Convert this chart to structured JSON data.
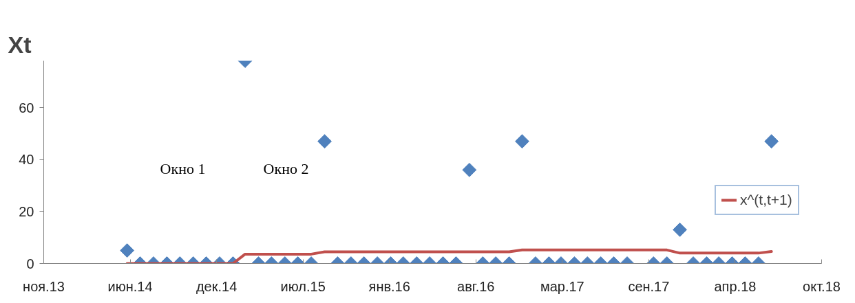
{
  "chart_data": {
    "type": "scatter",
    "title": "Xt",
    "x": [
      "2014-06",
      "2014-07",
      "2014-08",
      "2014-09",
      "2014-10",
      "2014-11",
      "2014-12",
      "2015-01",
      "2015-02",
      "2015-03",
      "2015-04",
      "2015-05",
      "2015-06",
      "2015-07",
      "2015-08",
      "2015-09",
      "2015-10",
      "2015-11",
      "2015-12",
      "2016-01",
      "2016-02",
      "2016-03",
      "2016-04",
      "2016-05",
      "2016-06",
      "2016-07",
      "2016-08",
      "2016-09",
      "2016-10",
      "2016-11",
      "2016-12",
      "2017-01",
      "2017-02",
      "2017-03",
      "2017-04",
      "2017-05",
      "2017-06",
      "2017-07",
      "2017-08",
      "2017-09",
      "2017-10",
      "2017-11",
      "2017-12",
      "2018-01",
      "2018-02",
      "2018-03",
      "2018-04",
      "2018-05",
      "2018-06",
      "2018-07"
    ],
    "series": [
      {
        "type": "scatter",
        "color": "#4f81bd",
        "marker": "diamond",
        "values": [
          5,
          0,
          0,
          0,
          0,
          0,
          0,
          0,
          0,
          78,
          0,
          0,
          0,
          0,
          0,
          47,
          0,
          0,
          0,
          0,
          0,
          0,
          0,
          0,
          0,
          0,
          36,
          0,
          0,
          0,
          47,
          0,
          0,
          0,
          0,
          0,
          0,
          0,
          0,
          null,
          0,
          0,
          13,
          0,
          0,
          0,
          0,
          0,
          0,
          47
        ]
      },
      {
        "type": "line",
        "name": "x^(t,t+1)",
        "color": "#c0504d",
        "line_style": "solid",
        "values": [
          0,
          0,
          0,
          0,
          0,
          0,
          0,
          0,
          0,
          3.6,
          3.6,
          3.6,
          3.6,
          3.6,
          3.6,
          4.5,
          4.5,
          4.5,
          4.5,
          4.5,
          4.5,
          4.5,
          4.5,
          4.5,
          4.5,
          4.5,
          4.5,
          4.5,
          4.5,
          4.5,
          5.2,
          5.2,
          5.2,
          5.2,
          5.2,
          5.2,
          5.2,
          5.2,
          5.2,
          5.2,
          5.2,
          5.2,
          4.0,
          4.0,
          4.0,
          4.0,
          4.0,
          4.0,
          4.0,
          4.6
        ]
      }
    ],
    "xlim": [
      "2013-11-20",
      "2018-10-25"
    ],
    "xticks": [
      {
        "value": "2013-11-20",
        "label": "ноя.13"
      },
      {
        "value": "2014-06-08",
        "label": "июн.14"
      },
      {
        "value": "2014-12-25",
        "label": "дек.14"
      },
      {
        "value": "2015-07-13",
        "label": "июл.15"
      },
      {
        "value": "2016-01-29",
        "label": "янв.16"
      },
      {
        "value": "2016-08-16",
        "label": "авг.16"
      },
      {
        "value": "2017-03-04",
        "label": "мар.17"
      },
      {
        "value": "2017-09-20",
        "label": "сен.17"
      },
      {
        "value": "2018-04-08",
        "label": "апр.18"
      },
      {
        "value": "2018-10-25",
        "label": "окт.18"
      }
    ],
    "ylim": [
      0,
      78
    ],
    "yticks": [
      0,
      20,
      40,
      60
    ],
    "grid": false,
    "legend": "right",
    "annotations": [
      "Окно 1",
      "Окно 2"
    ]
  }
}
